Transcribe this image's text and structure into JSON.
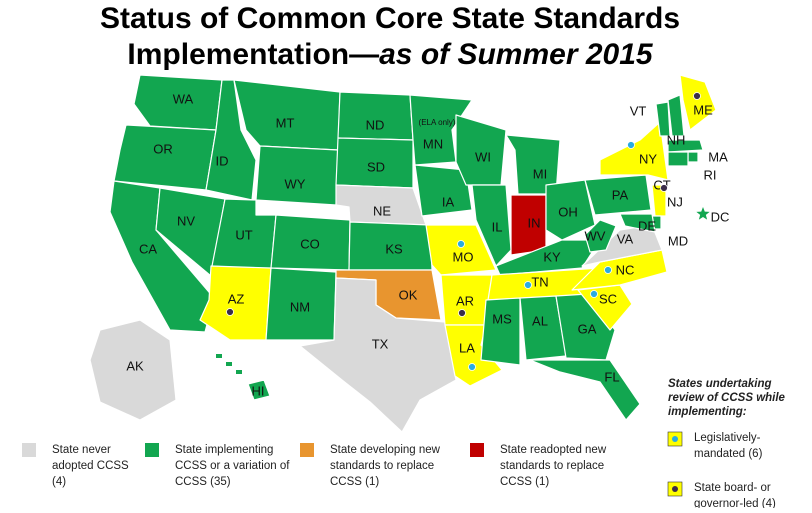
{
  "title": {
    "line1": "Status of Common Core State Standards",
    "line2": "Implementation—",
    "line2_italic": "as of Summer 2015"
  },
  "states": [
    {
      "label": "WA",
      "color": "#12a650"
    },
    {
      "label": "OR",
      "color": "#12a650"
    },
    {
      "label": "CA",
      "color": "#12a650"
    },
    {
      "label": "NV",
      "color": "#12a650"
    },
    {
      "label": "ID",
      "color": "#12a650"
    },
    {
      "label": "MT",
      "color": "#12a650"
    },
    {
      "label": "WY",
      "color": "#12a650"
    },
    {
      "label": "UT",
      "color": "#12a650"
    },
    {
      "label": "CO",
      "color": "#12a650"
    },
    {
      "label": "AZ",
      "color": "#ffff00",
      "marker": "#3b2d4a"
    },
    {
      "label": "NM",
      "color": "#12a650"
    },
    {
      "label": "ND",
      "color": "#12a650"
    },
    {
      "label": "SD",
      "color": "#12a650"
    },
    {
      "label": "NE",
      "color": "#d9d9d9"
    },
    {
      "label": "KS",
      "color": "#12a650"
    },
    {
      "label": "OK",
      "color": "#e8952f"
    },
    {
      "label": "TX",
      "color": "#d9d9d9"
    },
    {
      "label": "MN",
      "color": "#12a650"
    },
    {
      "label": "IA",
      "color": "#12a650"
    },
    {
      "label": "MO",
      "color": "#ffff00",
      "marker": "#29abe2"
    },
    {
      "label": "AR",
      "color": "#ffff00",
      "marker": "#3b2d4a"
    },
    {
      "label": "LA",
      "color": "#ffff00",
      "marker": "#29abe2"
    },
    {
      "label": "WI",
      "color": "#12a650"
    },
    {
      "label": "IL",
      "color": "#12a650"
    },
    {
      "label": "MI",
      "color": "#12a650"
    },
    {
      "label": "IN",
      "color": "#c00000"
    },
    {
      "label": "OH",
      "color": "#12a650"
    },
    {
      "label": "KY",
      "color": "#12a650"
    },
    {
      "label": "TN",
      "color": "#ffff00",
      "marker": "#29abe2"
    },
    {
      "label": "MS",
      "color": "#12a650"
    },
    {
      "label": "AL",
      "color": "#12a650"
    },
    {
      "label": "GA",
      "color": "#12a650"
    },
    {
      "label": "FL",
      "color": "#12a650"
    },
    {
      "label": "SC",
      "color": "#ffff00",
      "marker": "#29abe2"
    },
    {
      "label": "NC",
      "color": "#ffff00",
      "marker": "#29abe2"
    },
    {
      "label": "VA",
      "color": "#d9d9d9"
    },
    {
      "label": "WV",
      "color": "#12a650"
    },
    {
      "label": "PA",
      "color": "#12a650"
    },
    {
      "label": "NY",
      "color": "#ffff00",
      "marker": "#29abe2"
    },
    {
      "label": "VT",
      "color": "#12a650"
    },
    {
      "label": "NH",
      "color": "#12a650"
    },
    {
      "label": "ME",
      "color": "#ffff00",
      "marker": "#3b2d4a"
    },
    {
      "label": "MA",
      "color": "#12a650"
    },
    {
      "label": "RI",
      "color": "#12a650"
    },
    {
      "label": "CT",
      "color": "#12a650"
    },
    {
      "label": "NJ",
      "color": "#ffff00",
      "marker": "#3b2d4a"
    },
    {
      "label": "DE",
      "color": "#12a650"
    },
    {
      "label": "MD",
      "color": "#12a650"
    },
    {
      "label": "DC",
      "color": "#12a650"
    },
    {
      "label": "AK",
      "color": "#d9d9d9"
    },
    {
      "label": "HI",
      "color": "#12a650"
    }
  ],
  "mn_note": "(ELA only)",
  "legend": {
    "items": [
      {
        "color": "#d9d9d9",
        "lines": [
          "State never",
          "adopted CCSS",
          "(4)"
        ]
      },
      {
        "color": "#12a650",
        "lines": [
          "State implementing",
          "CCSS or a variation of",
          "CCSS (35)"
        ]
      },
      {
        "color": "#e8952f",
        "lines": [
          "State developing new",
          "standards to replace",
          "CCSS (1)"
        ]
      },
      {
        "color": "#c00000",
        "lines": [
          "State readopted new",
          "standards to replace",
          "CCSS (1)"
        ]
      }
    ],
    "review": {
      "title": [
        "States undertaking",
        "review of CCSS while",
        "implementing:"
      ],
      "color": "#ffff00",
      "items": [
        {
          "marker": "#29abe2",
          "lines": [
            "Legislatively-",
            "mandated (6)"
          ]
        },
        {
          "marker": "#3b2d4a",
          "lines": [
            "State board- or",
            "governor-led (4)"
          ]
        }
      ]
    }
  }
}
